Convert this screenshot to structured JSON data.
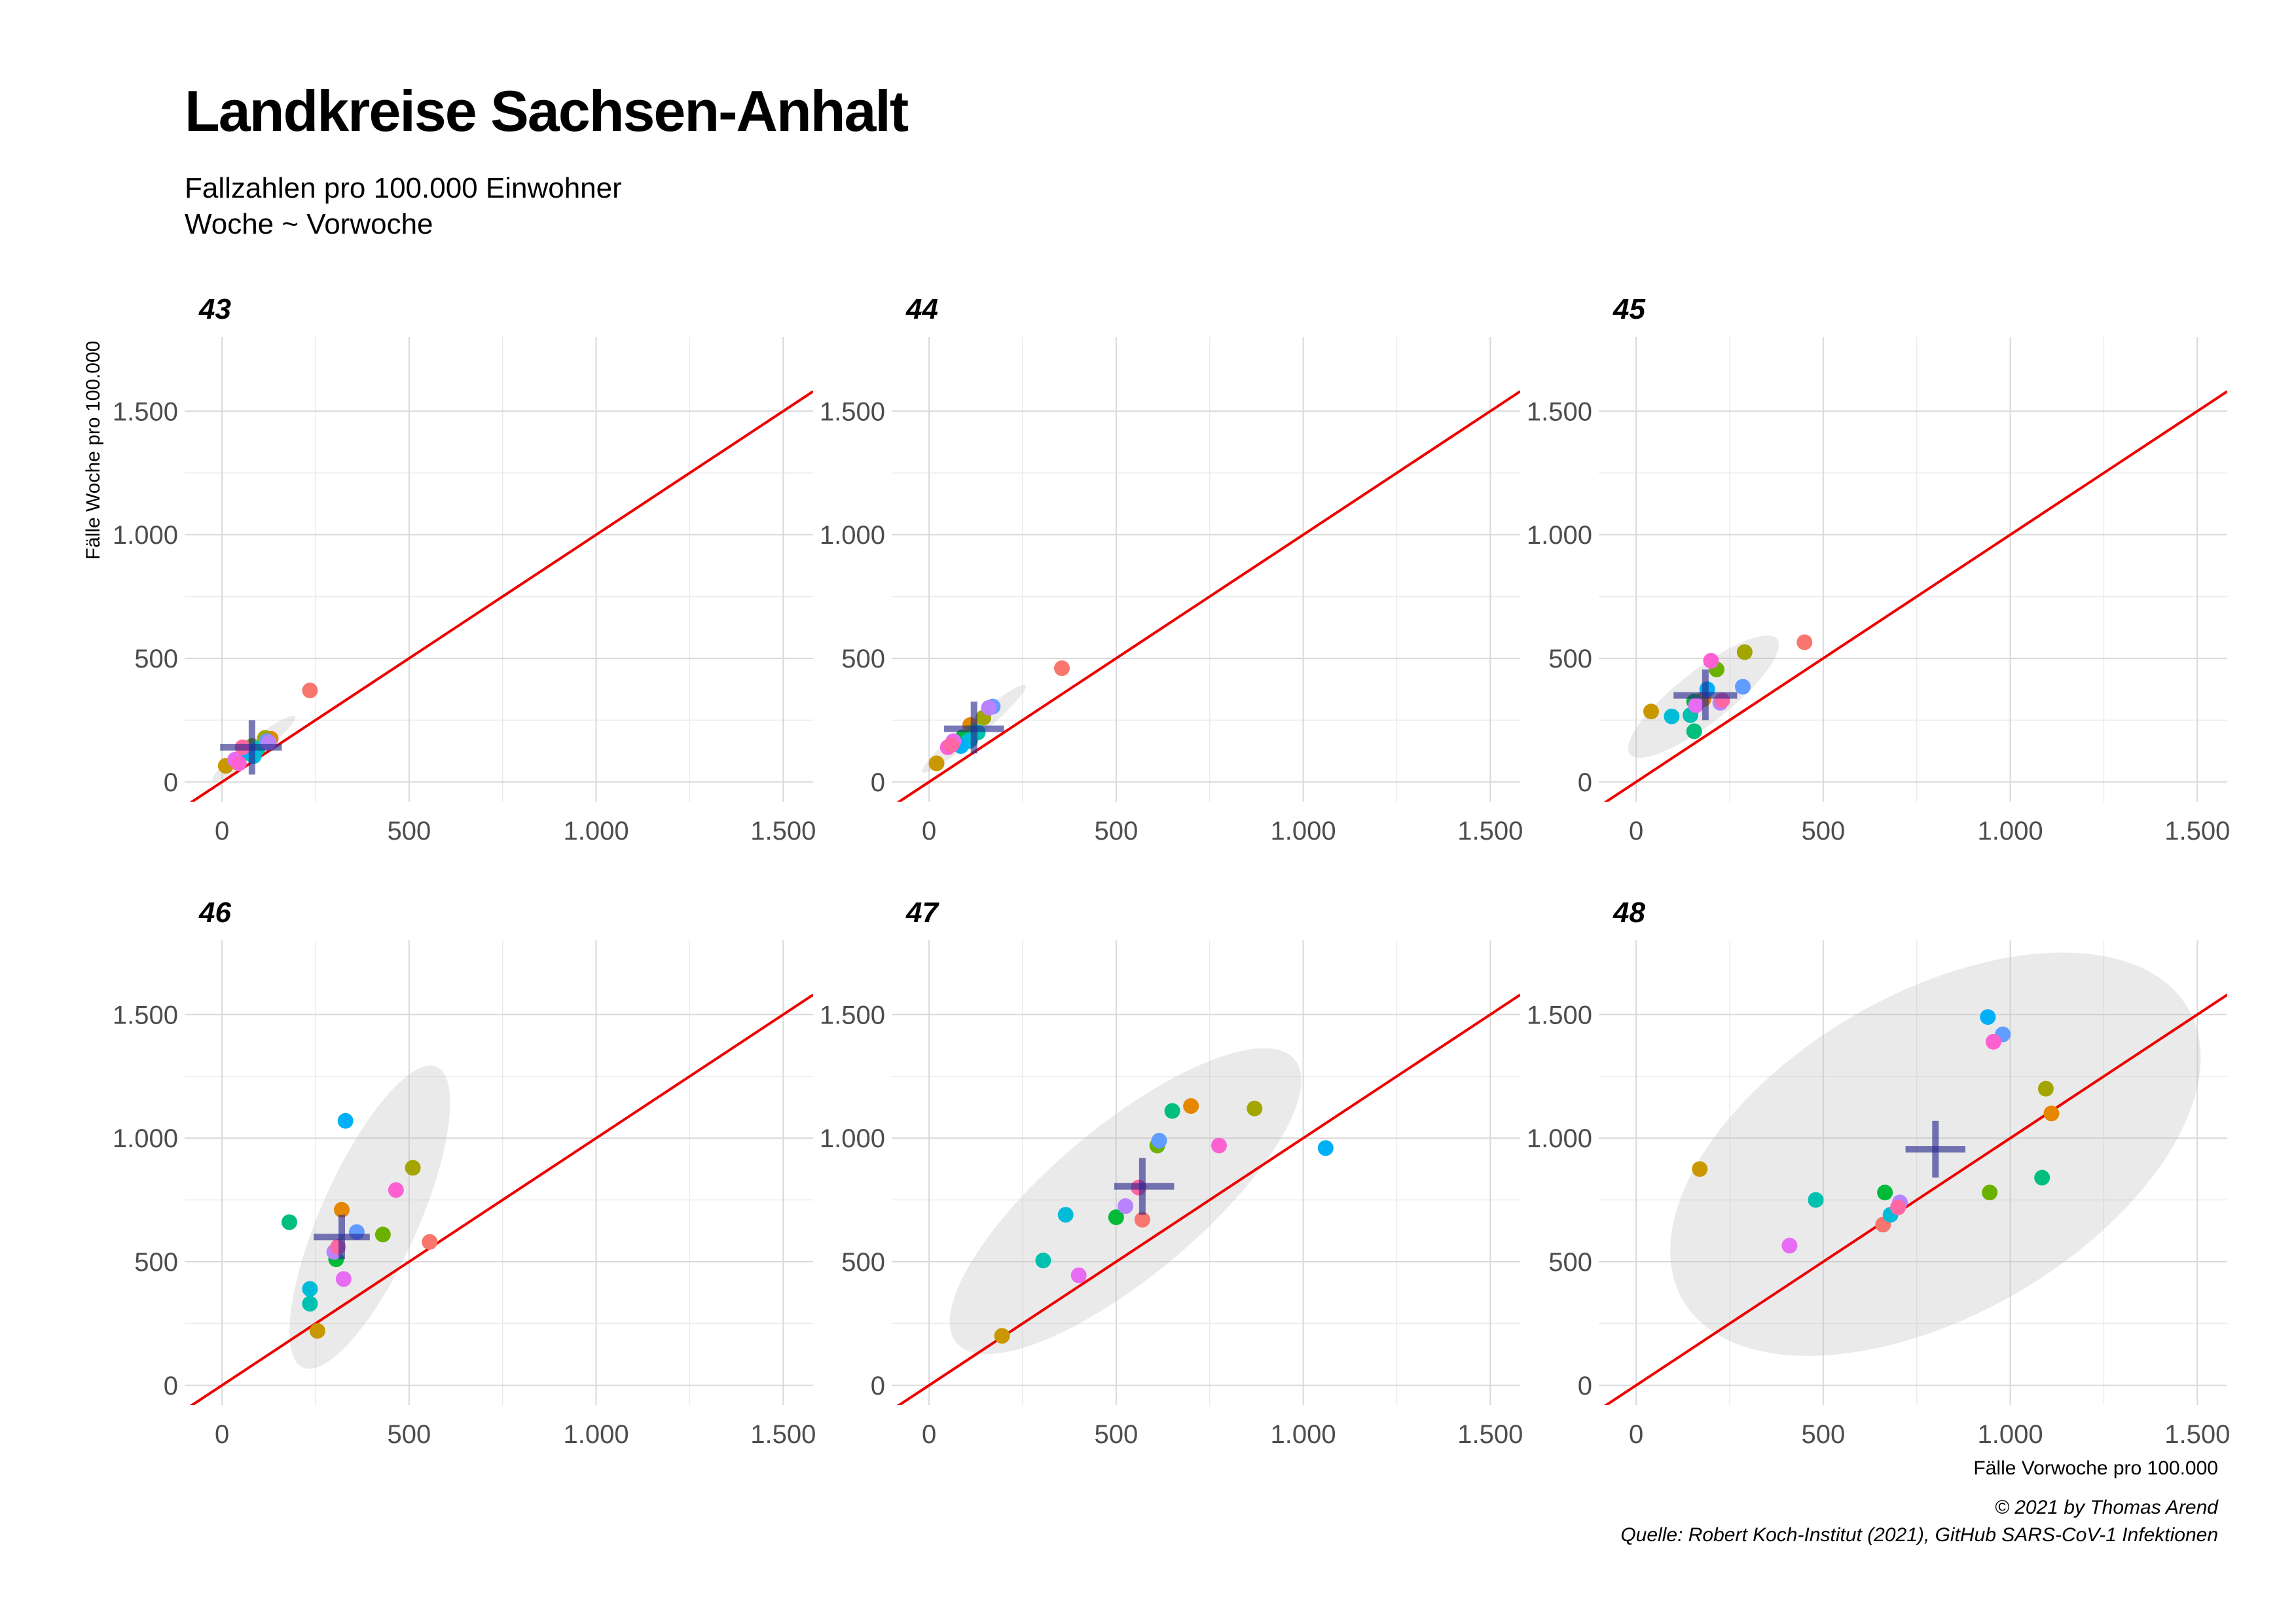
{
  "title": "Landkreise Sachsen-Anhalt",
  "subtitle_lines": [
    "Fallzahlen pro 100.000 Einwohner",
    "Woche ~ Vorwoche"
  ],
  "caption_lines": [
    "© 2021 by Thomas Arend",
    "Quelle: Robert Koch-Institut (2021), GitHub SARS-CoV-1 Infektionen"
  ],
  "chart_data": {
    "type": "scatter",
    "xlabel": "Fälle Vorwoche pro 100.000",
    "ylabel": "Fälle Woche pro 100.000",
    "xlim": [
      -100,
      1580
    ],
    "ylim": [
      -80,
      1800
    ],
    "xticks": [
      0,
      500,
      1000,
      1500
    ],
    "xtick_labels": [
      "0",
      "500",
      "1.000",
      "1.500"
    ],
    "yticks": [
      0,
      500,
      1000,
      1500
    ],
    "ytick_labels": [
      "0",
      "500",
      "1.000",
      "1.500"
    ],
    "reference_line": {
      "slope": 1,
      "intercept": 0,
      "color": "#ee0000"
    },
    "grid": true,
    "legend": "none",
    "point_colors": [
      "#f8766d",
      "#e58700",
      "#c99800",
      "#a3a500",
      "#6bb100",
      "#00ba38",
      "#00bf7d",
      "#00c0af",
      "#00bcd8",
      "#00b0f6",
      "#619cff",
      "#b983ff",
      "#e76bf3",
      "#fd61d1",
      "#ff67a4"
    ],
    "facets": [
      {
        "label": "43",
        "points": [
          [
            235,
            370
          ],
          [
            130,
            175
          ],
          [
            10,
            65
          ],
          [
            115,
            178
          ],
          [
            80,
            145
          ],
          [
            60,
            120
          ],
          [
            75,
            115
          ],
          [
            95,
            135
          ],
          [
            85,
            105
          ],
          [
            70,
            125
          ],
          [
            120,
            165
          ],
          [
            125,
            160
          ],
          [
            35,
            90
          ],
          [
            45,
            75
          ],
          [
            55,
            140
          ]
        ],
        "center": [
          80,
          140
        ],
        "cross": {
          "x": [
            -5,
            160
          ],
          "y": [
            30,
            250
          ]
        },
        "ellipse": {
          "cx": 85,
          "cy": 135,
          "rx": 140,
          "ry": 22,
          "angle": -38
        }
      },
      {
        "label": "44",
        "points": [
          [
            355,
            460
          ],
          [
            110,
            230
          ],
          [
            20,
            75
          ],
          [
            145,
            260
          ],
          [
            120,
            205
          ],
          [
            90,
            180
          ],
          [
            110,
            170
          ],
          [
            130,
            200
          ],
          [
            105,
            165
          ],
          [
            85,
            145
          ],
          [
            170,
            305
          ],
          [
            160,
            300
          ],
          [
            65,
            165
          ],
          [
            50,
            140
          ],
          [
            60,
            150
          ]
        ],
        "center": [
          120,
          215
        ],
        "cross": {
          "x": [
            40,
            200
          ],
          "y": [
            115,
            325
          ]
        },
        "ellipse": {
          "cx": 120,
          "cy": 215,
          "rx": 180,
          "ry": 24,
          "angle": -40
        }
      },
      {
        "label": "45",
        "points": [
          [
            450,
            565
          ],
          [
            180,
            335
          ],
          [
            40,
            285
          ],
          [
            290,
            525
          ],
          [
            215,
            455
          ],
          [
            155,
            325
          ],
          [
            155,
            205
          ],
          [
            145,
            270
          ],
          [
            95,
            265
          ],
          [
            190,
            375
          ],
          [
            285,
            385
          ],
          [
            225,
            320
          ],
          [
            160,
            310
          ],
          [
            200,
            490
          ],
          [
            230,
            330
          ]
        ],
        "center": [
          185,
          350
        ],
        "cross": {
          "x": [
            100,
            270
          ],
          "y": [
            250,
            455
          ]
        },
        "ellipse": {
          "cx": 180,
          "cy": 345,
          "rx": 250,
          "ry": 70,
          "angle": -38
        }
      },
      {
        "label": "46",
        "points": [
          [
            555,
            580
          ],
          [
            320,
            710
          ],
          [
            255,
            220
          ],
          [
            510,
            880
          ],
          [
            430,
            610
          ],
          [
            305,
            510
          ],
          [
            180,
            660
          ],
          [
            235,
            330
          ],
          [
            235,
            390
          ],
          [
            330,
            1070
          ],
          [
            360,
            620
          ],
          [
            300,
            540
          ],
          [
            325,
            430
          ],
          [
            465,
            790
          ],
          [
            310,
            560
          ]
        ],
        "center": [
          320,
          600
        ],
        "cross": {
          "x": [
            245,
            395
          ],
          "y": [
            510,
            690
          ]
        },
        "ellipse": {
          "cx": 395,
          "cy": 680,
          "rx": 440,
          "ry": 130,
          "angle": -66
        }
      },
      {
        "label": "47",
        "points": [
          [
            570,
            670
          ],
          [
            700,
            1130
          ],
          [
            195,
            200
          ],
          [
            870,
            1120
          ],
          [
            610,
            970
          ],
          [
            500,
            680
          ],
          [
            650,
            1110
          ],
          [
            305,
            505
          ],
          [
            365,
            690
          ],
          [
            1060,
            960
          ],
          [
            615,
            990
          ],
          [
            525,
            725
          ],
          [
            400,
            445
          ],
          [
            775,
            970
          ],
          [
            560,
            800
          ]
        ],
        "center": [
          570,
          805
        ],
        "cross": {
          "x": [
            495,
            655
          ],
          "y": [
            690,
            920
          ]
        },
        "ellipse": {
          "cx": 525,
          "cy": 745,
          "rx": 590,
          "ry": 200,
          "angle": -40
        }
      },
      {
        "label": "48",
        "points": [
          [
            660,
            650
          ],
          [
            1110,
            1100
          ],
          [
            170,
            875
          ],
          [
            1095,
            1200
          ],
          [
            945,
            780
          ],
          [
            665,
            780
          ],
          [
            1085,
            840
          ],
          [
            480,
            750
          ],
          [
            680,
            690
          ],
          [
            940,
            1490
          ],
          [
            980,
            1420
          ],
          [
            705,
            740
          ],
          [
            410,
            565
          ],
          [
            955,
            1390
          ],
          [
            700,
            720
          ]
        ],
        "center": [
          800,
          955
        ],
        "cross": {
          "x": [
            720,
            880
          ],
          "y": [
            840,
            1070
          ]
        },
        "ellipse": {
          "cx": 800,
          "cy": 935,
          "rx": 780,
          "ry": 430,
          "angle": -30
        }
      }
    ]
  }
}
